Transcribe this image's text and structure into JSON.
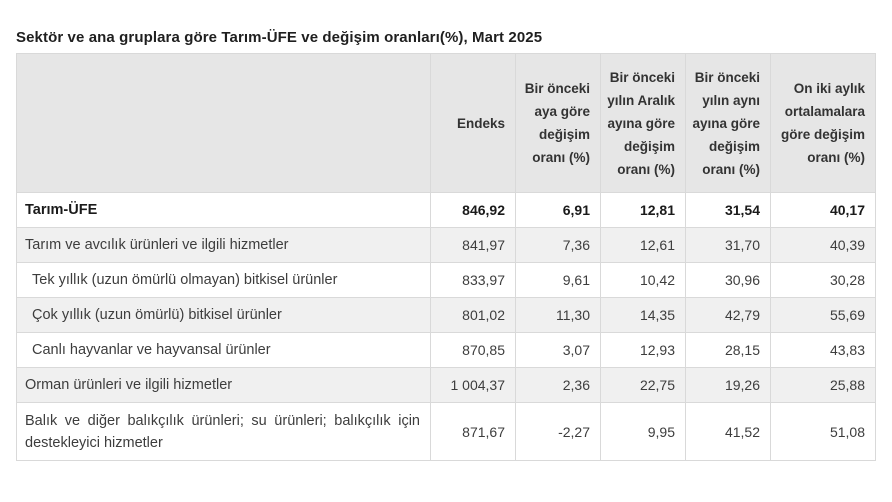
{
  "title": "Sektör ve ana gruplara göre Tarım-ÜFE ve değişim oranları(%), Mart 2025",
  "chart_data": {
    "type": "table",
    "title": "Sektör ve ana gruplara göre Tarım-ÜFE ve değişim oranları(%), Mart 2025",
    "columns": [
      "",
      "Endeks",
      "Bir önceki aya göre değişim oranı (%)",
      "Bir önceki yılın Aralık ayına göre değişim oranı (%)",
      "Bir önceki yılın aynı ayına göre değişim oranı (%)",
      "On iki aylık ortalamalara göre değişim oranı (%)"
    ],
    "rows": [
      {
        "label": "Tarım-ÜFE",
        "values": [
          "846,92",
          "6,91",
          "12,81",
          "31,54",
          "40,17"
        ]
      },
      {
        "label": "Tarım ve avcılık ürünleri ve ilgili hizmetler",
        "values": [
          "841,97",
          "7,36",
          "12,61",
          "31,70",
          "40,39"
        ]
      },
      {
        "label": "Tek yıllık (uzun ömürlü olmayan) bitkisel ürünler",
        "values": [
          "833,97",
          "9,61",
          "10,42",
          "30,96",
          "30,28"
        ]
      },
      {
        "label": "Çok yıllık (uzun ömürlü) bitkisel ürünler",
        "values": [
          "801,02",
          "11,30",
          "14,35",
          "42,79",
          "55,69"
        ]
      },
      {
        "label": "Canlı hayvanlar ve hayvansal ürünler",
        "values": [
          "870,85",
          "3,07",
          "12,93",
          "28,15",
          "43,83"
        ]
      },
      {
        "label": "Orman ürünleri ve ilgili hizmetler",
        "values": [
          "1 004,37",
          "2,36",
          "22,75",
          "19,26",
          "25,88"
        ]
      },
      {
        "label": "Balık ve diğer balıkçılık ürünleri; su ürünleri; balıkçılık için destekleyici hizmetler",
        "values": [
          "871,67",
          "-2,27",
          "9,95",
          "41,52",
          "51,08"
        ]
      }
    ]
  },
  "colors": {
    "header_bg": "#e6e6e6",
    "stripe_bg": "#f0f0f0",
    "border": "#d9d9d9",
    "text": "#3d3d3d",
    "title_text": "#1f1f1f"
  }
}
